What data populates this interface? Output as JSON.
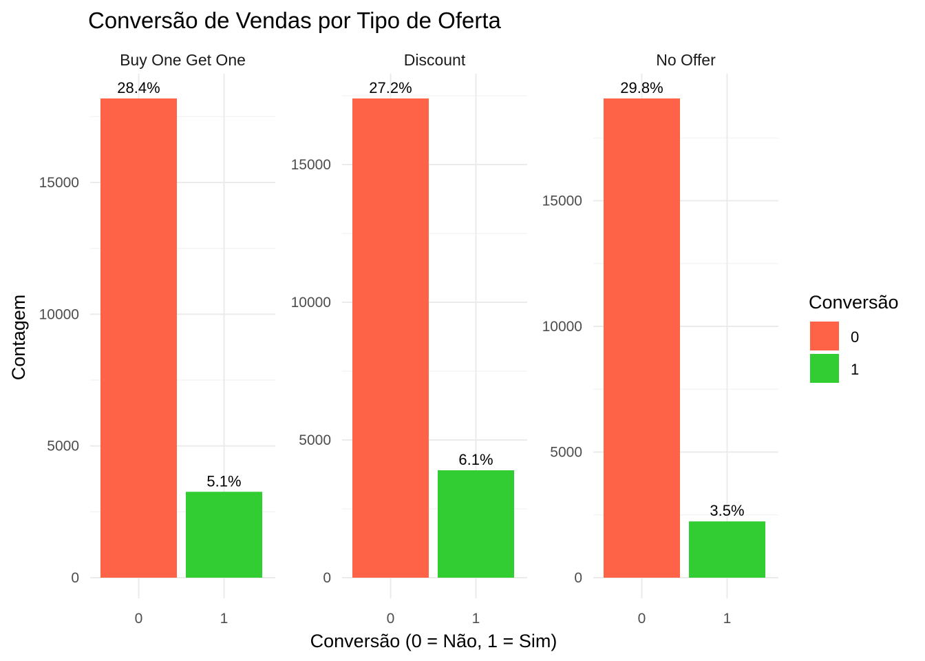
{
  "chart_data": {
    "type": "bar",
    "title": "Conversão de Vendas por Tipo de Oferta",
    "xlabel": "Conversão (0 = Não, 1 = Sim)",
    "ylabel": "Contagem",
    "legend": {
      "title": "Conversão",
      "position": "right",
      "entries": [
        {
          "label": "0",
          "color": "#FF6347"
        },
        {
          "label": "1",
          "color": "#32CD32"
        }
      ]
    },
    "categories": [
      "0",
      "1"
    ],
    "grid": true,
    "panels": [
      {
        "name": "Buy One Get One",
        "values": [
          18190,
          3260
        ],
        "labels": [
          "28.4%",
          "5.1%"
        ],
        "yticks": [
          0,
          5000,
          10000,
          15000
        ],
        "ylim": [
          0,
          18800
        ]
      },
      {
        "name": "Discount",
        "values": [
          17400,
          3900
        ],
        "labels": [
          "27.2%",
          "6.1%"
        ],
        "yticks": [
          0,
          5000,
          10000,
          15000
        ],
        "ylim": [
          0,
          18000
        ]
      },
      {
        "name": "No Offer",
        "values": [
          19070,
          2240
        ],
        "labels": [
          "29.8%",
          "3.5%"
        ],
        "yticks": [
          0,
          5000,
          10000,
          15000
        ],
        "ylim": [
          0,
          19700
        ]
      }
    ]
  }
}
